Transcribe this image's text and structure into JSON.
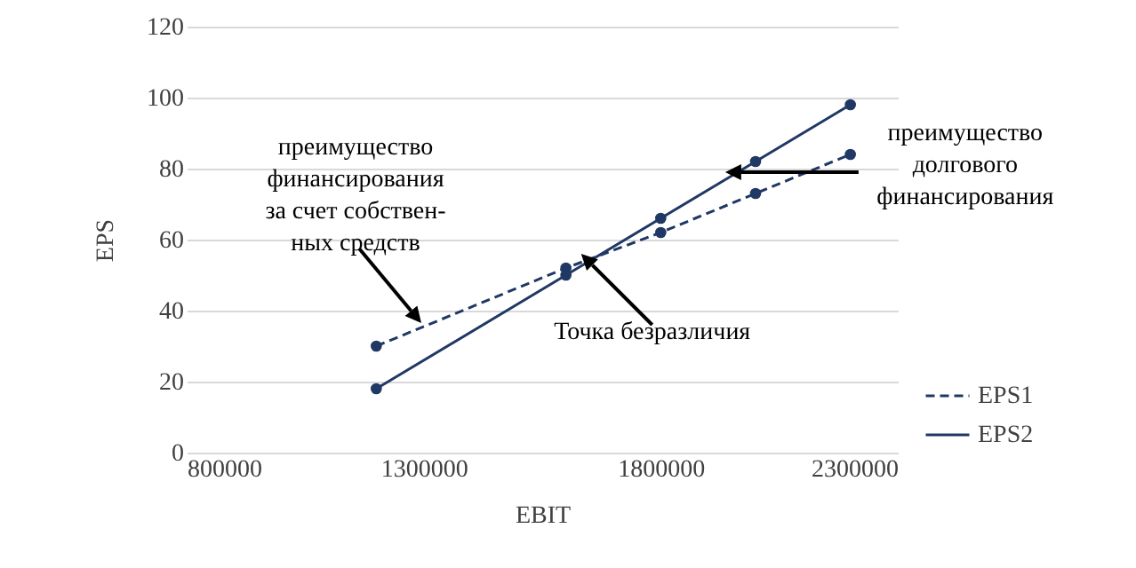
{
  "chart_data": {
    "type": "line",
    "xlabel": "EBIT",
    "ylabel": "EPS",
    "x": [
      1200000,
      1600000,
      1800000,
      2000000,
      2200000
    ],
    "series": [
      {
        "name": "EPS1",
        "color": "#1f3864",
        "values": [
          30,
          52,
          62,
          73,
          84
        ],
        "line_style": "dashed"
      },
      {
        "name": "EPS2",
        "color": "#1f3864",
        "values": [
          18,
          50,
          66,
          82,
          98
        ],
        "line_style": "solid"
      }
    ],
    "xlim": [
      800000,
      2300000
    ],
    "xticks": [
      800000,
      1300000,
      1800000,
      2300000
    ],
    "ylim": [
      0,
      120
    ],
    "yticks": [
      0,
      20,
      40,
      60,
      80,
      100,
      120
    ],
    "grid": "y",
    "legend": "right",
    "marker": "circle",
    "annotations": [
      {
        "text": "преимущество\nфинансирования\nза счет собствен-\nных средств",
        "x": 1295000,
        "y": 36.5
      },
      {
        "text": "Точка безразличия",
        "x": 1632000,
        "y": 56
      },
      {
        "text": "преимущество\nдолгового\nфинансирования",
        "x": 1936000,
        "y": 79
      }
    ]
  }
}
